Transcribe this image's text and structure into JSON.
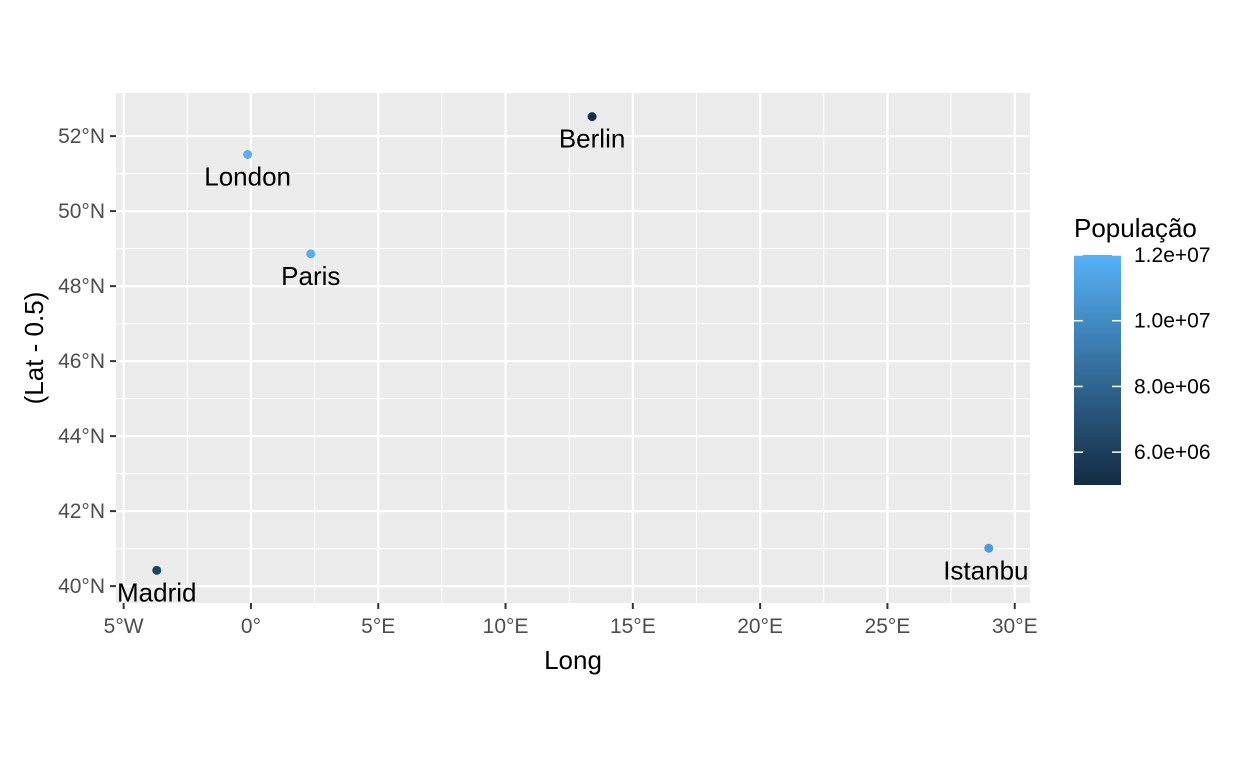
{
  "chart_data": {
    "type": "scatter",
    "xlabel": "Long",
    "ylabel": "(Lat - 0.5)",
    "xlim": [
      -5.3,
      30.6
    ],
    "ylim": [
      39.55,
      53.15
    ],
    "x_ticks": [
      -5,
      0,
      5,
      10,
      15,
      20,
      25,
      30
    ],
    "x_tick_labels": [
      "5°W",
      "0°",
      "5°E",
      "10°E",
      "15°E",
      "20°E",
      "25°E",
      "30°E"
    ],
    "y_ticks": [
      40,
      42,
      44,
      46,
      48,
      50,
      52
    ],
    "y_tick_labels": [
      "40°N",
      "42°N",
      "44°N",
      "46°N",
      "48°N",
      "50°N",
      "52°N"
    ],
    "grid": true,
    "legend": {
      "title": "População",
      "position": "right",
      "min": 5000000,
      "max": 12000000,
      "low_color": "#132b43",
      "high_color": "#56b1f7",
      "breaks": [
        6000000,
        8000000,
        10000000,
        12000000
      ],
      "break_labels": [
        "6.0e+06",
        "8.0e+06",
        "1.0e+07",
        "1.2e+07"
      ]
    },
    "points": [
      {
        "label": "London",
        "x": -0.13,
        "y": 51.51,
        "population": 11900000
      },
      {
        "label": "Paris",
        "x": 2.35,
        "y": 48.86,
        "population": 11800000
      },
      {
        "label": "Berlin",
        "x": 13.4,
        "y": 52.52,
        "population": 5200000
      },
      {
        "label": "Madrid",
        "x": -3.7,
        "y": 40.42,
        "population": 6200000
      },
      {
        "label": "Istanbul",
        "x": 28.98,
        "y": 41.01,
        "population": 10900000
      }
    ]
  }
}
